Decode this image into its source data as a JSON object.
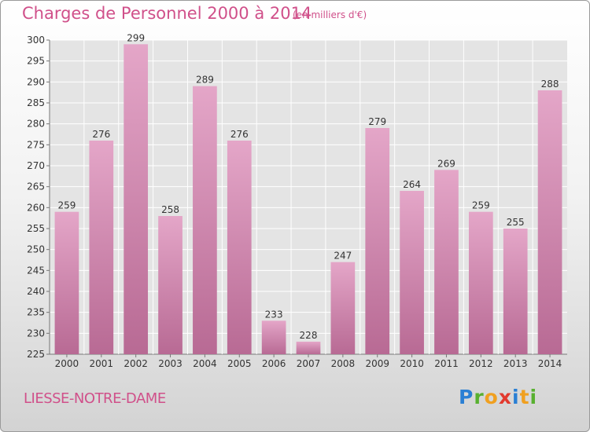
{
  "header": {
    "title": "Charges de Personnel 2000 à 2014",
    "subtitle": "(en milliers d'€)"
  },
  "footer": {
    "town": "LIESSE-NOTRE-DAME"
  },
  "logo": {
    "letters": [
      "P",
      "r",
      "o",
      "x",
      "i",
      "t",
      "i"
    ],
    "colors": [
      "#2a7fd4",
      "#58b030",
      "#f0a020",
      "#e23a2e",
      "#2a7fd4",
      "#f0a020",
      "#58b030"
    ]
  },
  "colors": {
    "bar_top": "#e4a6c8",
    "bar_bottom": "#b86a94",
    "text": "#d0508a"
  },
  "chart_data": {
    "type": "bar",
    "categories": [
      "2000",
      "2001",
      "2002",
      "2003",
      "2004",
      "2005",
      "2006",
      "2007",
      "2008",
      "2009",
      "2010",
      "2011",
      "2012",
      "2013",
      "2014"
    ],
    "values": [
      259,
      276,
      299,
      258,
      289,
      276,
      233,
      228,
      247,
      279,
      264,
      269,
      259,
      255,
      288
    ],
    "ylim": [
      225,
      300
    ],
    "yticks": [
      225,
      230,
      235,
      240,
      245,
      250,
      255,
      260,
      265,
      270,
      275,
      280,
      285,
      290,
      295,
      300
    ],
    "grid": true
  }
}
